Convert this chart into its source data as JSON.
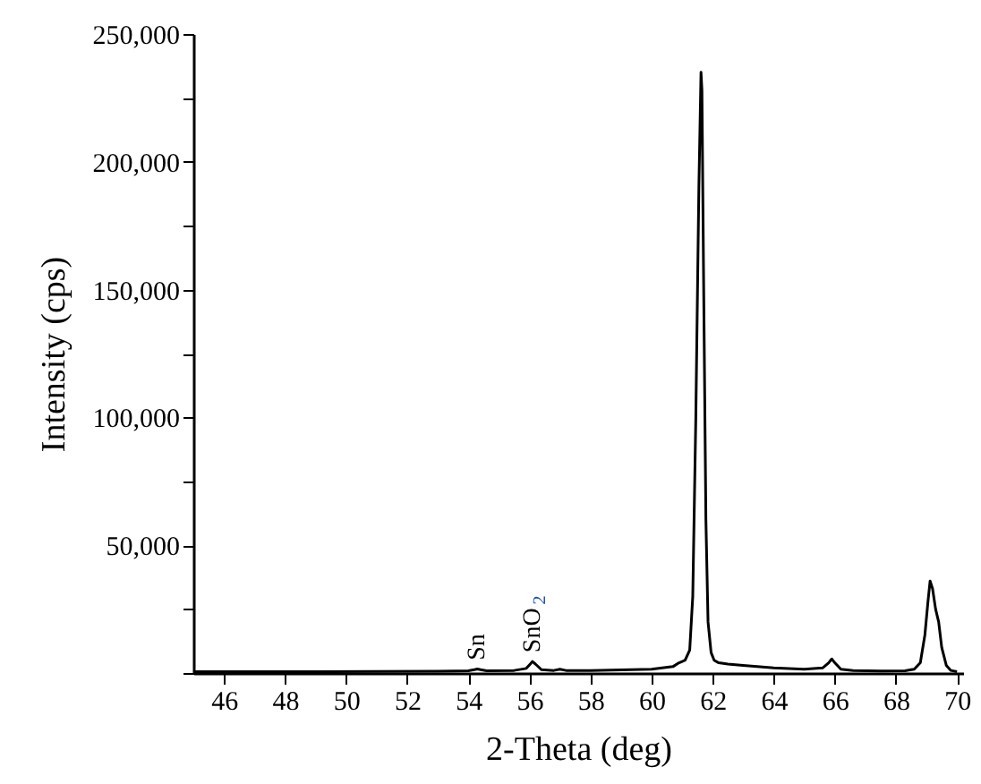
{
  "chart_data": {
    "type": "line",
    "xlabel": "2-Theta (deg)",
    "ylabel": "Intensity (cps)",
    "xlim": [
      45,
      70.2
    ],
    "xticks": [
      46,
      48,
      50,
      52,
      54,
      56,
      58,
      60,
      62,
      64,
      66,
      68,
      70
    ],
    "ylim": [
      0,
      250000
    ],
    "yticks": [
      {
        "value": 0,
        "label": null
      },
      {
        "value": 25000,
        "label": null
      },
      {
        "value": 50000,
        "label": "50,000"
      },
      {
        "value": 75000,
        "label": null
      },
      {
        "value": 100000,
        "label": "100,000"
      },
      {
        "value": 125000,
        "label": null
      },
      {
        "value": 150000,
        "label": "150,000"
      },
      {
        "value": 175000,
        "label": null
      },
      {
        "value": 200000,
        "label": "200,000"
      },
      {
        "value": 225000,
        "label": null
      },
      {
        "value": 250000,
        "label": "250,000"
      }
    ],
    "grid": false,
    "annotations": [
      {
        "text": "Sn",
        "x": 54.3,
        "y": 1500
      },
      {
        "text": "SnO$_{2}$",
        "x": 56.1,
        "y": 4500
      }
    ],
    "series": [
      {
        "color": "#000000",
        "x": [
          45,
          47,
          49,
          51,
          53,
          54,
          54.2,
          54.3,
          54.4,
          54.6,
          55.5,
          55.9,
          56.05,
          56.1,
          56.2,
          56.4,
          56.8,
          57,
          57.2,
          58,
          59,
          60,
          60.7,
          60.9,
          61.1,
          61.25,
          61.35,
          61.45,
          61.55,
          61.62,
          61.65,
          61.7,
          61.78,
          61.85,
          61.95,
          62.05,
          62.2,
          62.5,
          63,
          64,
          65,
          65.6,
          65.8,
          65.9,
          66.0,
          66.2,
          66.6,
          67.5,
          68.3,
          68.6,
          68.8,
          68.95,
          69.05,
          69.12,
          69.2,
          69.3,
          69.4,
          69.5,
          69.65,
          69.8,
          70
        ],
        "values": [
          500,
          500,
          500,
          600,
          700,
          900,
          1300,
          1600,
          1300,
          900,
          1000,
          1800,
          3800,
          4500,
          3500,
          1300,
          1000,
          1500,
          1000,
          1000,
          1200,
          1500,
          2500,
          4000,
          5000,
          9000,
          30000,
          100000,
          190000,
          235000,
          228000,
          160000,
          60000,
          20000,
          8000,
          5000,
          4000,
          3500,
          3000,
          2000,
          1500,
          2000,
          4000,
          5500,
          4000,
          1500,
          1000,
          800,
          900,
          1500,
          4000,
          15000,
          28000,
          36000,
          33000,
          25000,
          20000,
          10000,
          3000,
          1000,
          500
        ]
      }
    ]
  }
}
